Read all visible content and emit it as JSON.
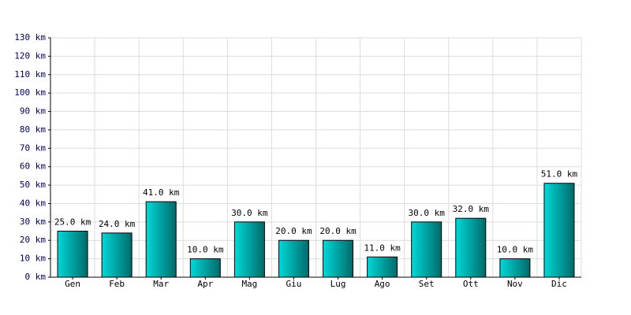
{
  "chart_data": {
    "type": "bar",
    "categories": [
      "Gen",
      "Feb",
      "Mar",
      "Apr",
      "Mag",
      "Giu",
      "Lug",
      "Ago",
      "Set",
      "Ott",
      "Nov",
      "Dic"
    ],
    "values": [
      25,
      24,
      41,
      10,
      30,
      20,
      20,
      11,
      30,
      32,
      10,
      51
    ],
    "value_labels": [
      "25.0 km",
      "24.0 km",
      "41.0 km",
      "10.0 km",
      "30.0 km",
      "20.0 km",
      "20.0 km",
      "11.0 km",
      "30.0 km",
      "32.0 km",
      "10.0 km",
      "51.0 km"
    ],
    "color": "#00d8d8",
    "ylim": [
      0,
      130
    ],
    "yticks": [
      {
        "value": 0,
        "label": "0 km"
      },
      {
        "value": 10,
        "label": "10 km"
      },
      {
        "value": 20,
        "label": "20 km"
      },
      {
        "value": 30,
        "label": "30 km"
      },
      {
        "value": 40,
        "label": "40 km"
      },
      {
        "value": 50,
        "label": "50 km"
      },
      {
        "value": 60,
        "label": "60 km"
      },
      {
        "value": 70,
        "label": "70 km"
      },
      {
        "value": 80,
        "label": "80 km"
      },
      {
        "value": 90,
        "label": "90 km"
      },
      {
        "value": 100,
        "label": "100 km"
      },
      {
        "value": 110,
        "label": "110 km"
      },
      {
        "value": 120,
        "label": "120 km"
      },
      {
        "value": 130,
        "label": "130 km"
      }
    ],
    "grid": true
  }
}
